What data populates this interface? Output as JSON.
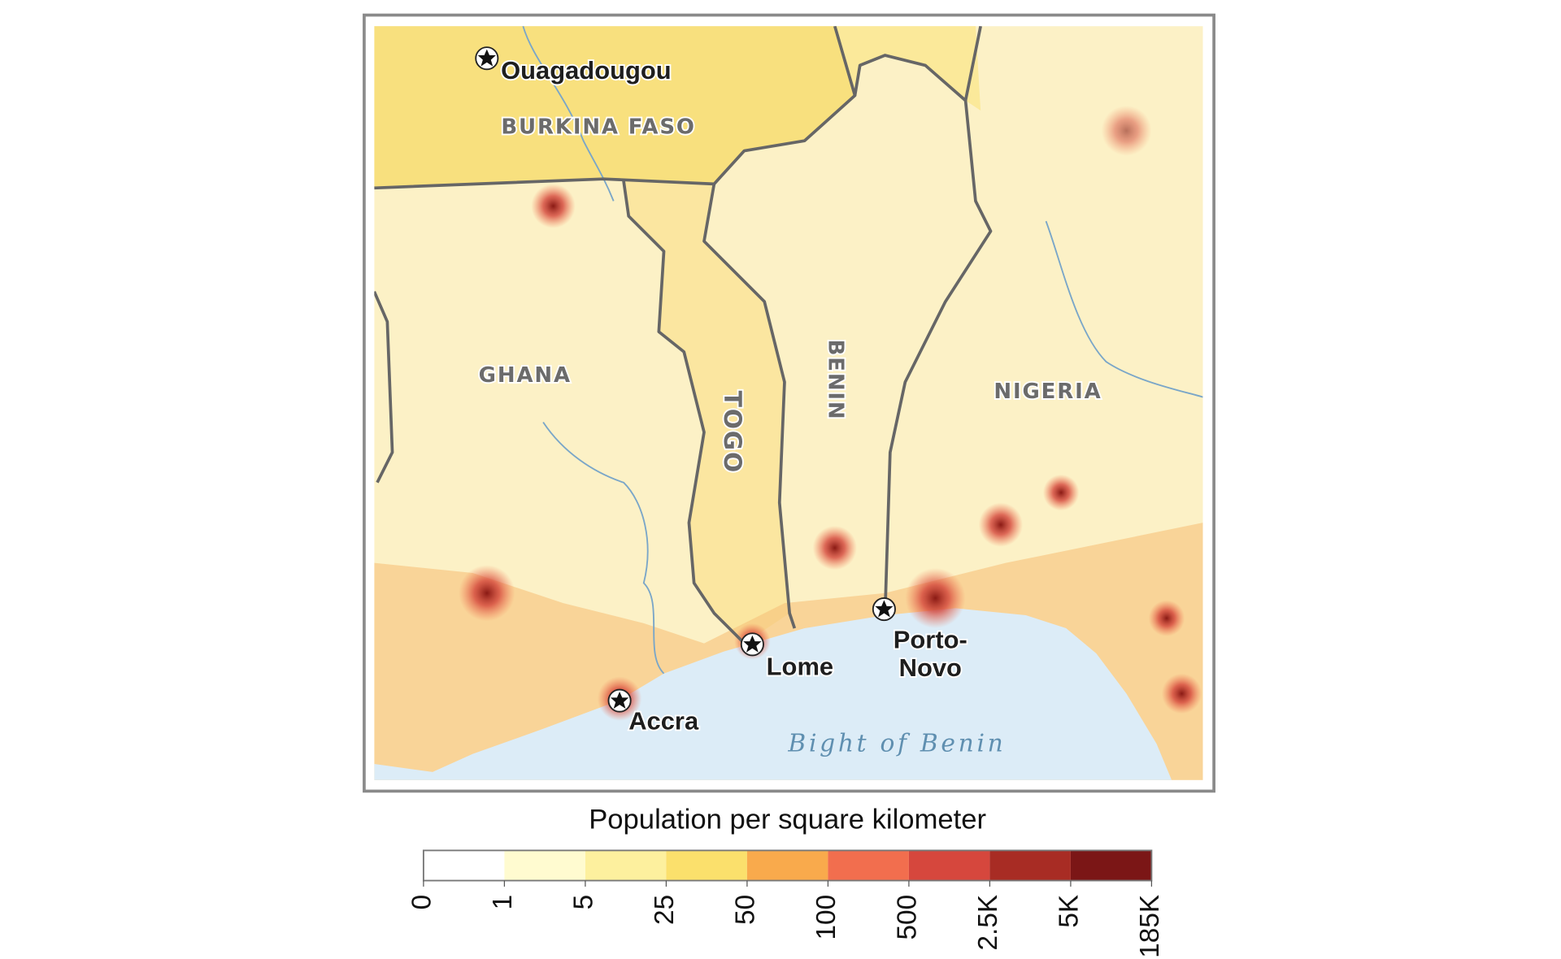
{
  "map": {
    "countries": {
      "burkina_faso": "BURKINA FASO",
      "ghana": "GHANA",
      "togo": "TOGO",
      "benin": "BENIN",
      "nigeria": "NIGERIA"
    },
    "cities": {
      "ouagadougou": "Ouagadougou",
      "lome": "Lome",
      "porto_novo": [
        "Porto-",
        "Novo"
      ],
      "accra": "Accra"
    },
    "water": "Bight of Benin"
  },
  "legend": {
    "title": "Population per square kilometer",
    "ticks": [
      0,
      1,
      5,
      25,
      50,
      100,
      500,
      {
        "value": 2500,
        "label": "2.5K"
      },
      {
        "value": 5000,
        "label": "5K"
      },
      {
        "value": 185000,
        "label": "185K"
      }
    ],
    "colors": [
      "#ffffff",
      "#fffbd0",
      "#fdf09e",
      "#fbe06c",
      "#f9aa4c",
      "#f26e4e",
      "#d6473d",
      "#a82c24",
      "#7b1616"
    ]
  }
}
